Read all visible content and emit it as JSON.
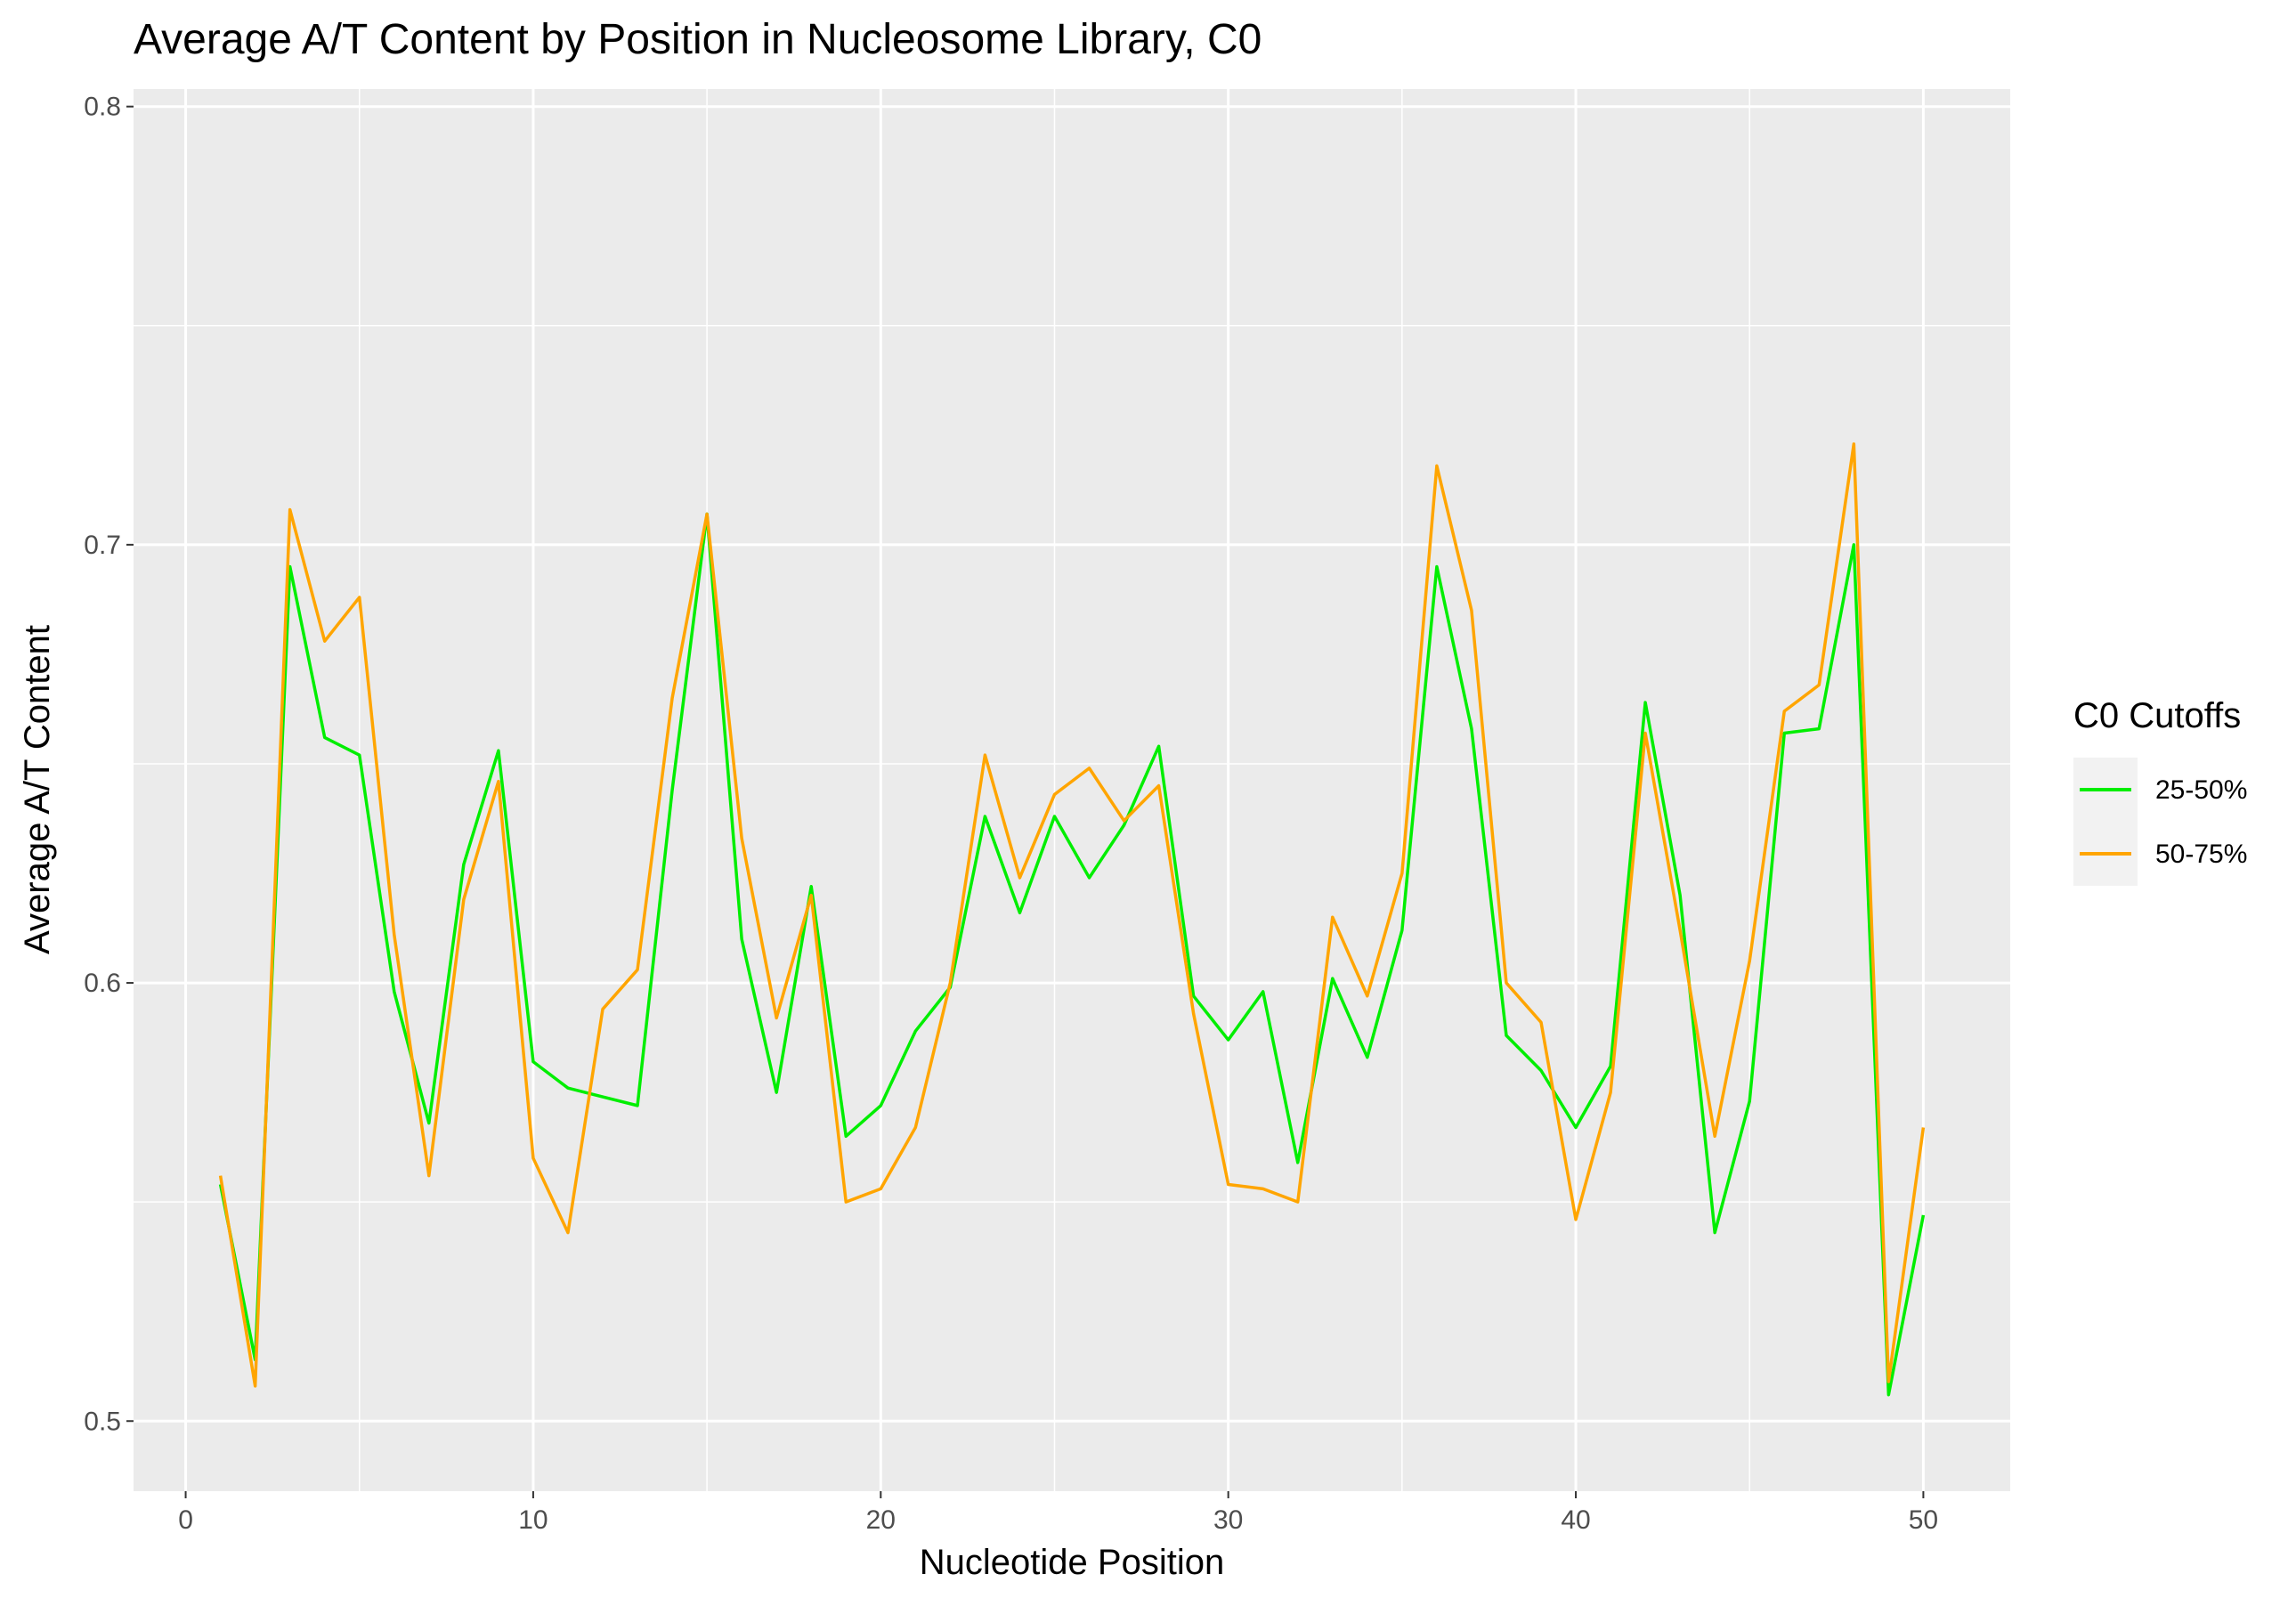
{
  "chart_data": {
    "type": "line",
    "title": "Average A/T Content by Position in Nucleosome Library, C0",
    "xlabel": "Nucleotide Position",
    "ylabel": "Average A/T Content",
    "xlim": [
      -1.5,
      52.5
    ],
    "ylim": [
      0.484,
      0.804
    ],
    "x_ticks": [
      0,
      10,
      20,
      30,
      40,
      50
    ],
    "x_tick_labels": [
      "0",
      "10",
      "20",
      "30",
      "40",
      "50"
    ],
    "y_ticks": [
      0.5,
      0.6,
      0.7,
      0.8
    ],
    "y_tick_labels": [
      "0.5",
      "0.6",
      "0.7",
      "0.8"
    ],
    "grid": true,
    "legend": {
      "title": "C0 Cutoffs",
      "position": "right"
    },
    "x": [
      1,
      2,
      3,
      4,
      5,
      6,
      7,
      8,
      9,
      10,
      11,
      12,
      13,
      14,
      15,
      16,
      17,
      18,
      19,
      20,
      21,
      22,
      23,
      24,
      25,
      26,
      27,
      28,
      29,
      30,
      31,
      32,
      33,
      34,
      35,
      36,
      37,
      38,
      39,
      40,
      41,
      42,
      43,
      44,
      45,
      46,
      47,
      48,
      49,
      50
    ],
    "series": [
      {
        "name": "25-50%",
        "color": "#00ee00",
        "values": [
          0.554,
          0.514,
          0.695,
          0.656,
          0.652,
          0.598,
          0.568,
          0.627,
          0.653,
          0.582,
          0.576,
          0.574,
          0.572,
          0.644,
          0.707,
          0.61,
          0.575,
          0.622,
          0.565,
          0.572,
          0.589,
          0.599,
          0.638,
          0.616,
          0.638,
          0.624,
          0.636,
          0.654,
          0.597,
          0.587,
          0.598,
          0.559,
          0.601,
          0.583,
          0.612,
          0.695,
          0.658,
          0.588,
          0.58,
          0.567,
          0.581,
          0.664,
          0.62,
          0.543,
          0.573,
          0.657,
          0.658,
          0.7,
          0.506,
          0.547
        ]
      },
      {
        "name": "50-75%",
        "color": "#ffa500",
        "values": [
          0.556,
          0.508,
          0.708,
          0.678,
          0.688,
          0.611,
          0.556,
          0.619,
          0.646,
          0.56,
          0.543,
          0.594,
          0.603,
          0.665,
          0.707,
          0.633,
          0.592,
          0.62,
          0.55,
          0.553,
          0.567,
          0.6,
          0.652,
          0.624,
          0.643,
          0.649,
          0.637,
          0.645,
          0.593,
          0.554,
          0.553,
          0.55,
          0.615,
          0.597,
          0.625,
          0.718,
          0.685,
          0.6,
          0.591,
          0.546,
          0.575,
          0.657,
          0.612,
          0.565,
          0.605,
          0.662,
          0.668,
          0.723,
          0.509,
          0.567
        ]
      }
    ]
  }
}
